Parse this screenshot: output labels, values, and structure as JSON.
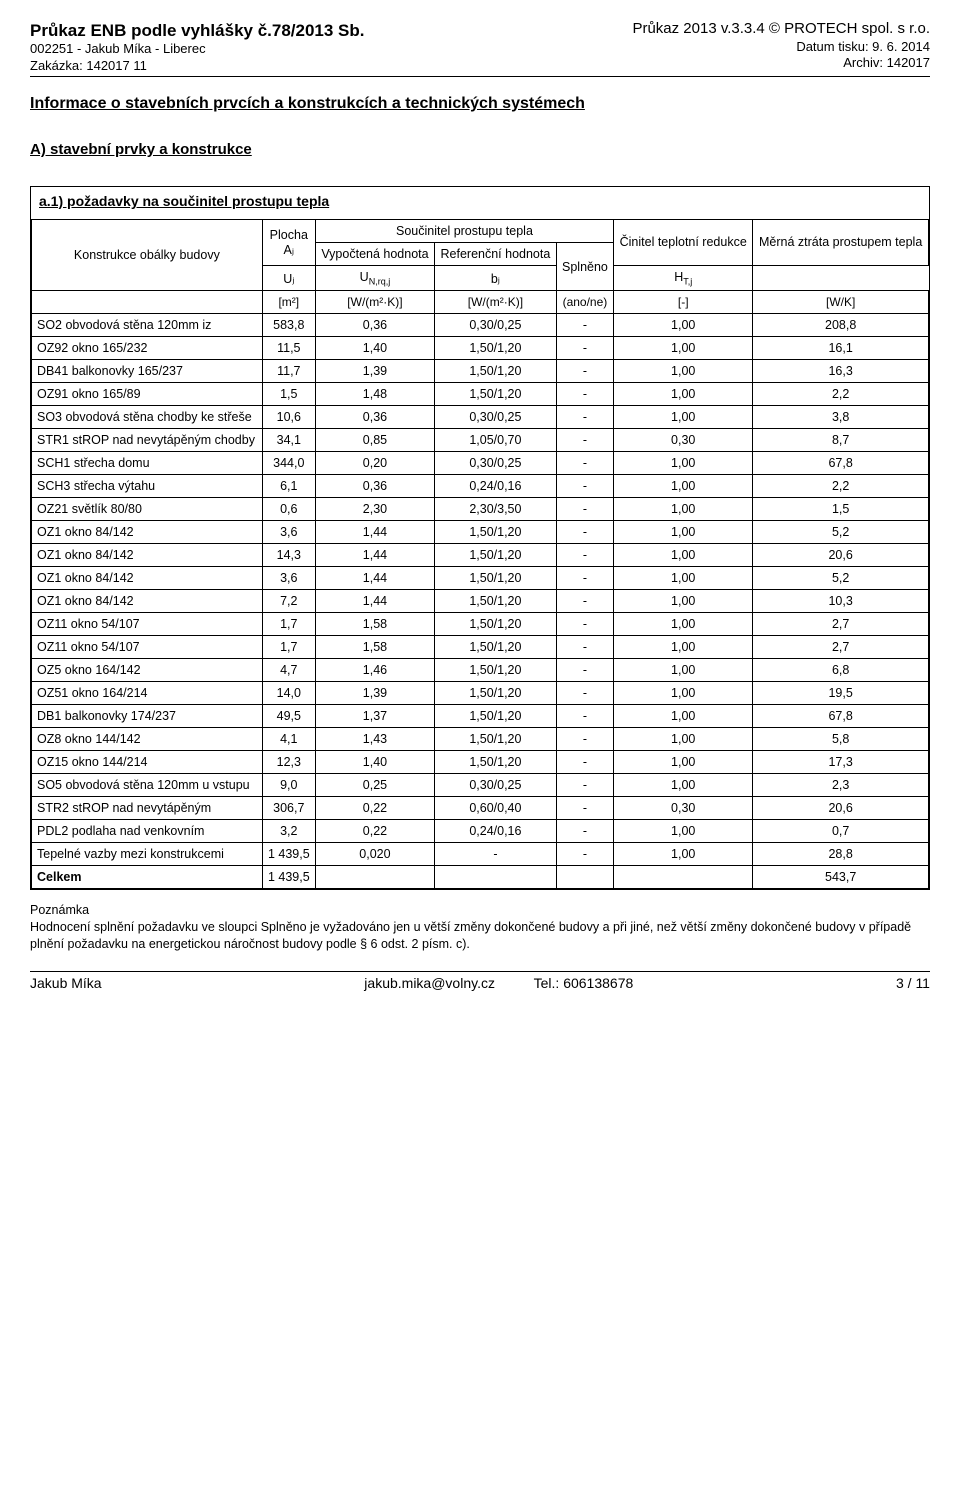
{
  "header": {
    "left": {
      "line1": "Průkaz ENB podle vyhlášky č.78/2013 Sb.",
      "line2": "002251 - Jakub Míka - Liberec",
      "line3": "Zakázka: 142017 11"
    },
    "right": {
      "line1": "Průkaz 2013 v.3.3.4 © PROTECH spol. s r.o.",
      "line2": "Datum tisku: 9. 6. 2014",
      "line3": "Archiv: 142017"
    }
  },
  "section_title": "Informace o stavebních prvcích a konstrukcích a technických systémech",
  "subsection_title": "A) stavební prvky a konstrukce",
  "requirement_title": "a.1) požadavky na součinitel prostupu tepla",
  "table": {
    "header": {
      "col1": "Konstrukce obálky budovy",
      "plocha": "Plocha",
      "plocha_sym": "Aⱼ",
      "soucinitel": "Součinitel prostupu tepla",
      "vypoctena": "Vypočtená hodnota",
      "vypoctena_sym": "Uⱼ",
      "referencni": "Referenční hodnota",
      "referencni_sym": "U",
      "referencni_sub": "N,rq,j",
      "splneno": "Splněno",
      "cinitel": "Činitel teplotní redukce",
      "cinitel_sym": "bⱼ",
      "merna": "Měrná ztráta prostupem tepla",
      "merna_sym": "H",
      "merna_sub": "T,j"
    },
    "units": {
      "c1": "",
      "c2": "[m²]",
      "c3": "[W/(m²·K)]",
      "c4": "[W/(m²·K)]",
      "c5": "(ano/ne)",
      "c6": "[-]",
      "c7": "[W/K]"
    },
    "rows": [
      {
        "name": "SO2 obvodová stěna 120mm iz",
        "area": "583,8",
        "u": "0,36",
        "ref": "0,30/0,25",
        "spl": "-",
        "b": "1,00",
        "h": "208,8"
      },
      {
        "name": "OZ92 okno 165/232",
        "area": "11,5",
        "u": "1,40",
        "ref": "1,50/1,20",
        "spl": "-",
        "b": "1,00",
        "h": "16,1"
      },
      {
        "name": "DB41 balkonovky 165/237",
        "area": "11,7",
        "u": "1,39",
        "ref": "1,50/1,20",
        "spl": "-",
        "b": "1,00",
        "h": "16,3"
      },
      {
        "name": "OZ91 okno 165/89",
        "area": "1,5",
        "u": "1,48",
        "ref": "1,50/1,20",
        "spl": "-",
        "b": "1,00",
        "h": "2,2"
      },
      {
        "name": "SO3 obvodová stěna chodby ke střeše",
        "area": "10,6",
        "u": "0,36",
        "ref": "0,30/0,25",
        "spl": "-",
        "b": "1,00",
        "h": "3,8"
      },
      {
        "name": "STR1 stROP nad nevytápěným chodby",
        "area": "34,1",
        "u": "0,85",
        "ref": "1,05/0,70",
        "spl": "-",
        "b": "0,30",
        "h": "8,7"
      },
      {
        "name": "SCH1 střecha domu",
        "area": "344,0",
        "u": "0,20",
        "ref": "0,30/0,25",
        "spl": "-",
        "b": "1,00",
        "h": "67,8"
      },
      {
        "name": "SCH3 střecha výtahu",
        "area": "6,1",
        "u": "0,36",
        "ref": "0,24/0,16",
        "spl": "-",
        "b": "1,00",
        "h": "2,2"
      },
      {
        "name": "OZ21 světlík 80/80",
        "area": "0,6",
        "u": "2,30",
        "ref": "2,30/3,50",
        "spl": "-",
        "b": "1,00",
        "h": "1,5"
      },
      {
        "name": "OZ1 okno 84/142",
        "area": "3,6",
        "u": "1,44",
        "ref": "1,50/1,20",
        "spl": "-",
        "b": "1,00",
        "h": "5,2"
      },
      {
        "name": "OZ1 okno 84/142",
        "area": "14,3",
        "u": "1,44",
        "ref": "1,50/1,20",
        "spl": "-",
        "b": "1,00",
        "h": "20,6"
      },
      {
        "name": "OZ1 okno 84/142",
        "area": "3,6",
        "u": "1,44",
        "ref": "1,50/1,20",
        "spl": "-",
        "b": "1,00",
        "h": "5,2"
      },
      {
        "name": "OZ1 okno 84/142",
        "area": "7,2",
        "u": "1,44",
        "ref": "1,50/1,20",
        "spl": "-",
        "b": "1,00",
        "h": "10,3"
      },
      {
        "name": "OZ11 okno 54/107",
        "area": "1,7",
        "u": "1,58",
        "ref": "1,50/1,20",
        "spl": "-",
        "b": "1,00",
        "h": "2,7"
      },
      {
        "name": "OZ11 okno 54/107",
        "area": "1,7",
        "u": "1,58",
        "ref": "1,50/1,20",
        "spl": "-",
        "b": "1,00",
        "h": "2,7"
      },
      {
        "name": "OZ5 okno 164/142",
        "area": "4,7",
        "u": "1,46",
        "ref": "1,50/1,20",
        "spl": "-",
        "b": "1,00",
        "h": "6,8"
      },
      {
        "name": "OZ51 okno 164/214",
        "area": "14,0",
        "u": "1,39",
        "ref": "1,50/1,20",
        "spl": "-",
        "b": "1,00",
        "h": "19,5"
      },
      {
        "name": "DB1 balkonovky 174/237",
        "area": "49,5",
        "u": "1,37",
        "ref": "1,50/1,20",
        "spl": "-",
        "b": "1,00",
        "h": "67,8"
      },
      {
        "name": "OZ8 okno 144/142",
        "area": "4,1",
        "u": "1,43",
        "ref": "1,50/1,20",
        "spl": "-",
        "b": "1,00",
        "h": "5,8"
      },
      {
        "name": "OZ15 okno 144/214",
        "area": "12,3",
        "u": "1,40",
        "ref": "1,50/1,20",
        "spl": "-",
        "b": "1,00",
        "h": "17,3"
      },
      {
        "name": "SO5 obvodová stěna 120mm u vstupu",
        "area": "9,0",
        "u": "0,25",
        "ref": "0,30/0,25",
        "spl": "-",
        "b": "1,00",
        "h": "2,3"
      },
      {
        "name": "STR2 stROP nad nevytápěným",
        "area": "306,7",
        "u": "0,22",
        "ref": "0,60/0,40",
        "spl": "-",
        "b": "0,30",
        "h": "20,6"
      },
      {
        "name": "PDL2 podlaha nad venkovním",
        "area": "3,2",
        "u": "0,22",
        "ref": "0,24/0,16",
        "spl": "-",
        "b": "1,00",
        "h": "0,7"
      },
      {
        "name": "Tepelné vazby mezi konstrukcemi",
        "area": "1 439,5",
        "u": "0,020",
        "ref": "-",
        "spl": "-",
        "b": "1,00",
        "h": "28,8"
      }
    ],
    "total": {
      "name": "Celkem",
      "area": "1 439,5",
      "u": "",
      "ref": "",
      "spl": "",
      "b": "",
      "h": "543,7"
    }
  },
  "note": {
    "title": "Poznámka",
    "body": "Hodnocení splnění požadavku ve sloupci Splněno je vyžadováno jen u větší změny dokončené budovy a při jiné, než větší změny dokončené budovy v případě plnění požadavku na energetickou náročnost budovy podle § 6 odst. 2 písm. c)."
  },
  "footer": {
    "left": "Jakub Míka",
    "mid": "jakub.mika@volny.cz",
    "phone_label": "Tel.: ",
    "phone": "606138678",
    "right": "3 / 11"
  }
}
